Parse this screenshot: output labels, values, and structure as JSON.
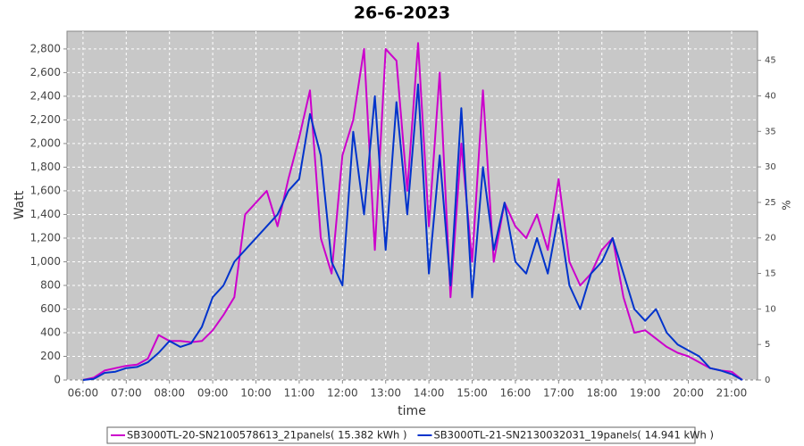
{
  "chart_data": {
    "type": "line",
    "title": "26-6-2023",
    "x_label": "time",
    "y_label": "Watt",
    "y2_label": "%",
    "x": [
      6.0,
      6.25,
      6.5,
      6.75,
      7.0,
      7.25,
      7.5,
      7.75,
      8.0,
      8.25,
      8.5,
      8.75,
      9.0,
      9.25,
      9.5,
      9.75,
      10.0,
      10.25,
      10.5,
      10.75,
      11.0,
      11.25,
      11.5,
      11.75,
      12.0,
      12.25,
      12.5,
      12.75,
      13.0,
      13.25,
      13.5,
      13.75,
      14.0,
      14.25,
      14.5,
      14.75,
      15.0,
      15.25,
      15.5,
      15.75,
      16.0,
      16.25,
      16.5,
      16.75,
      17.0,
      17.25,
      17.5,
      17.75,
      18.0,
      18.25,
      18.5,
      18.75,
      19.0,
      19.25,
      19.5,
      19.75,
      20.0,
      20.25,
      20.5,
      20.75,
      21.0,
      21.25
    ],
    "series": [
      {
        "name": "SB3000TL-20-SN2100578613_21panels( 15.382 kWh )",
        "color": "#cc00cc",
        "values": [
          0,
          20,
          80,
          100,
          120,
          130,
          180,
          380,
          330,
          330,
          320,
          330,
          420,
          550,
          700,
          1400,
          1500,
          1600,
          1300,
          1700,
          2050,
          2450,
          1200,
          900,
          1900,
          2200,
          2800,
          1100,
          2800,
          2700,
          1600,
          2850,
          1300,
          2600,
          700,
          2000,
          1000,
          2450,
          1000,
          1500,
          1300,
          1200,
          1400,
          1100,
          1700,
          1000,
          800,
          900,
          1100,
          1200,
          700,
          400,
          420,
          350,
          280,
          230,
          200,
          150,
          100,
          80,
          70,
          0
        ]
      },
      {
        "name": "SB3000TL-21-SN2130032031_19panels( 14.941 kWh )",
        "color": "#0033cc",
        "values": [
          0,
          10,
          60,
          70,
          100,
          110,
          150,
          230,
          330,
          280,
          310,
          450,
          700,
          800,
          1000,
          1100,
          1200,
          1300,
          1400,
          1600,
          1700,
          2250,
          1900,
          1000,
          800,
          2100,
          1400,
          2400,
          1100,
          2350,
          1400,
          2500,
          900,
          1900,
          800,
          2300,
          700,
          1800,
          1100,
          1500,
          1000,
          900,
          1200,
          900,
          1400,
          800,
          600,
          900,
          1000,
          1200,
          900,
          600,
          500,
          600,
          400,
          300,
          250,
          200,
          100,
          80,
          50,
          0
        ]
      }
    ],
    "xlim": [
      5.63,
      21.6
    ],
    "xticks": [
      {
        "value": 6,
        "label": "06:00"
      },
      {
        "value": 7,
        "label": "07:00"
      },
      {
        "value": 8,
        "label": "08:00"
      },
      {
        "value": 9,
        "label": "09:00"
      },
      {
        "value": 10,
        "label": "10:00"
      },
      {
        "value": 11,
        "label": "11:00"
      },
      {
        "value": 12,
        "label": "12:00"
      },
      {
        "value": 13,
        "label": "13:00"
      },
      {
        "value": 14,
        "label": "14:00"
      },
      {
        "value": 15,
        "label": "15:00"
      },
      {
        "value": 16,
        "label": "16:00"
      },
      {
        "value": 17,
        "label": "17:00"
      },
      {
        "value": 18,
        "label": "18:00"
      },
      {
        "value": 19,
        "label": "19:00"
      },
      {
        "value": 20,
        "label": "20:00"
      },
      {
        "value": 21,
        "label": "21:00"
      }
    ],
    "ylim": [
      0,
      2950
    ],
    "yticks": [
      0,
      200,
      400,
      600,
      800,
      {
        "value": 1000,
        "label": "1,000"
      },
      {
        "value": 1200,
        "label": "1,200"
      },
      {
        "value": 1400,
        "label": "1,400"
      },
      {
        "value": 1600,
        "label": "1,600"
      },
      {
        "value": 1800,
        "label": "1,800"
      },
      {
        "value": 2000,
        "label": "2,000"
      },
      {
        "value": 2200,
        "label": "2,200"
      },
      {
        "value": 2400,
        "label": "2,400"
      },
      {
        "value": 2600,
        "label": "2,600"
      },
      {
        "value": 2800,
        "label": "2,800"
      }
    ],
    "y2lim": [
      0,
      49.1
    ],
    "y2ticks": [
      0,
      5,
      10,
      15,
      20,
      25,
      30,
      35,
      40,
      45
    ],
    "grid": true
  }
}
